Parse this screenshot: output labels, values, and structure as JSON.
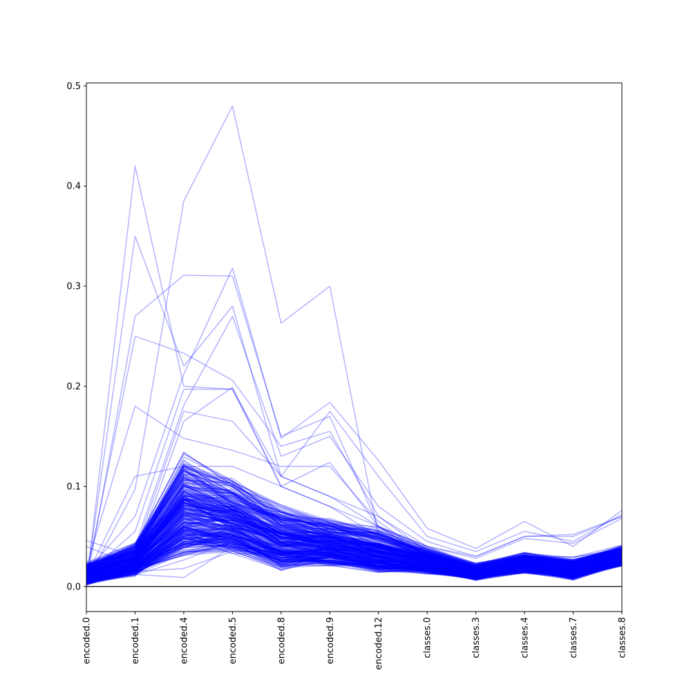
{
  "chart_data": {
    "type": "line",
    "plot_kind": "parallel-coordinates",
    "title": "",
    "xlabel": "",
    "ylabel": "",
    "categories": [
      "encoded.0",
      "encoded.1",
      "encoded.4",
      "encoded.5",
      "encoded.8",
      "encoded.9",
      "encoded.12",
      "classes.0",
      "classes.3",
      "classes.4",
      "classes.7",
      "classes.8"
    ],
    "ylim": [
      -0.025,
      0.503
    ],
    "yticks": [
      0.0,
      0.1,
      0.2,
      0.3,
      0.4,
      0.5
    ],
    "ytick_labels": [
      "0.0",
      "0.1",
      "0.2",
      "0.3",
      "0.4",
      "0.5"
    ],
    "reference_line": 0.0,
    "grid": false,
    "legend": "none",
    "line_color": "#0000ff",
    "line_opacity": 0.3,
    "series": [
      {
        "values": [
          0.001,
          0.42,
          0.2,
          0.197,
          0.1,
          0.08,
          0.05,
          0.03,
          0.02,
          0.03,
          0.02,
          0.03
        ]
      },
      {
        "values": [
          0.005,
          0.35,
          0.22,
          0.28,
          0.11,
          0.09,
          0.06,
          0.03,
          0.02,
          0.03,
          0.025,
          0.035
        ]
      },
      {
        "values": [
          0.003,
          0.27,
          0.311,
          0.31,
          0.15,
          0.17,
          0.06,
          0.04,
          0.02,
          0.03,
          0.02,
          0.03
        ]
      },
      {
        "values": [
          0.01,
          0.25,
          0.233,
          0.206,
          0.14,
          0.155,
          0.07,
          0.035,
          0.02,
          0.025,
          0.02,
          0.03
        ]
      },
      {
        "values": [
          0.02,
          0.18,
          0.148,
          0.136,
          0.12,
          0.12,
          0.065,
          0.03,
          0.018,
          0.025,
          0.02,
          0.03
        ]
      },
      {
        "values": [
          0.01,
          0.11,
          0.12,
          0.12,
          0.1,
          0.124,
          0.06,
          0.03,
          0.02,
          0.028,
          0.02,
          0.03
        ]
      },
      {
        "values": [
          0.005,
          0.097,
          0.385,
          0.48,
          0.263,
          0.3,
          0.05,
          0.03,
          0.02,
          0.03,
          0.02,
          0.03
        ]
      },
      {
        "values": [
          0.015,
          0.07,
          0.212,
          0.318,
          0.148,
          0.184,
          0.126,
          0.058,
          0.038,
          0.065,
          0.04,
          0.076
        ]
      },
      {
        "values": [
          0.012,
          0.055,
          0.197,
          0.197,
          0.11,
          0.175,
          0.11,
          0.05,
          0.035,
          0.055,
          0.045,
          0.072
        ]
      },
      {
        "values": [
          0.02,
          0.04,
          0.181,
          0.27,
          0.13,
          0.15,
          0.08,
          0.045,
          0.03,
          0.05,
          0.05,
          0.07
        ]
      },
      {
        "values": [
          0.01,
          0.035,
          0.175,
          0.165,
          0.11,
          0.09,
          0.07,
          0.04,
          0.03,
          0.05,
          0.052,
          0.07
        ]
      },
      {
        "values": [
          0.008,
          0.03,
          0.165,
          0.199,
          0.1,
          0.08,
          0.06,
          0.04,
          0.028,
          0.048,
          0.043,
          0.068
        ]
      },
      {
        "values": [
          0.004,
          0.015,
          0.018,
          0.035,
          0.02,
          0.025,
          0.02,
          0.018,
          0.008,
          0.018,
          0.01,
          0.024
        ]
      },
      {
        "values": [
          0.003,
          0.012,
          0.009,
          0.04,
          0.02,
          0.024,
          0.018,
          0.016,
          0.007,
          0.016,
          0.009,
          0.022
        ]
      },
      {
        "values": [
          0.046,
          0.03,
          0.06,
          0.07,
          0.05,
          0.04,
          0.03,
          0.02,
          0.01,
          0.02,
          0.01,
          0.025
        ]
      },
      {
        "values": [
          0.04,
          0.02,
          0.05,
          0.06,
          0.045,
          0.04,
          0.03,
          0.02,
          0.01,
          0.02,
          0.012,
          0.026
        ]
      }
    ],
    "bulk_band": {
      "description": "dense cluster of many overlapping series",
      "low": [
        0.001,
        0.01,
        0.025,
        0.032,
        0.015,
        0.02,
        0.013,
        0.012,
        0.006,
        0.013,
        0.006,
        0.02
      ],
      "high": [
        0.025,
        0.045,
        0.14,
        0.11,
        0.085,
        0.07,
        0.06,
        0.04,
        0.024,
        0.035,
        0.03,
        0.042
      ],
      "count": 320
    }
  }
}
